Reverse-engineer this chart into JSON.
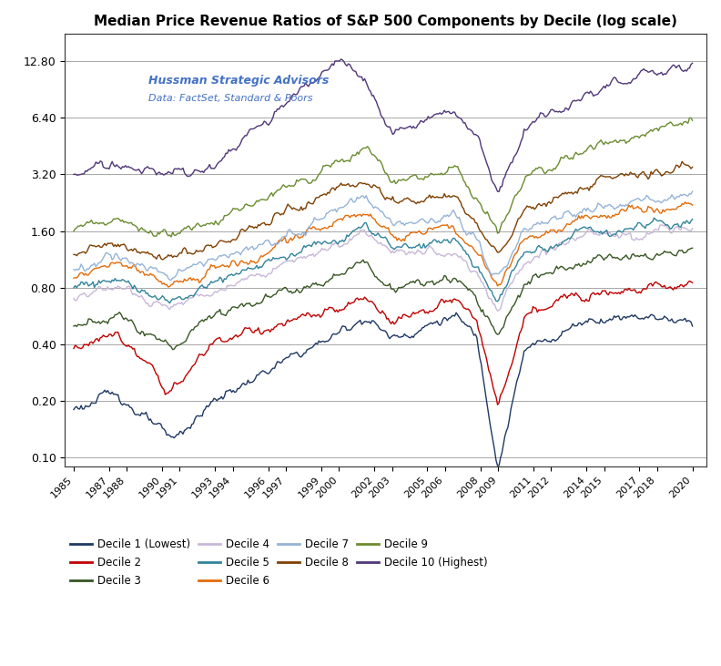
{
  "title": "Median Price Revenue Ratios of S&P 500 Components by Decile (log scale)",
  "annotation_line1": "Hussman Strategic Advisors",
  "annotation_line2": "Data: FactSet, Standard & Poors",
  "yticks": [
    0.1,
    0.2,
    0.4,
    0.8,
    1.6,
    3.2,
    6.4,
    12.8
  ],
  "ytick_labels": [
    "0.10",
    "0.20",
    "0.40",
    "0.80",
    "1.60",
    "3.20",
    "6.40",
    "12.80"
  ],
  "xtick_years": [
    1985,
    1987,
    1988,
    1990,
    1991,
    1993,
    1994,
    1996,
    1997,
    1999,
    2000,
    2002,
    2003,
    2005,
    2006,
    2008,
    2009,
    2011,
    2012,
    2014,
    2015,
    2017,
    2018,
    2020
  ],
  "deciles": [
    {
      "name": "Decile 1 (Lowest)",
      "color": "#1f3864"
    },
    {
      "name": "Decile 2",
      "color": "#c00000"
    },
    {
      "name": "Decile 3",
      "color": "#375623"
    },
    {
      "name": "Decile 4",
      "color": "#c8b8d8"
    },
    {
      "name": "Decile 5",
      "color": "#31849b"
    },
    {
      "name": "Decile 6",
      "color": "#e36c09"
    },
    {
      "name": "Decile 7",
      "color": "#95b3d7"
    },
    {
      "name": "Decile 8",
      "color": "#7f3f00"
    },
    {
      "name": "Decile 9",
      "color": "#6a8b2f"
    },
    {
      "name": "Decile 10 (Highest)",
      "color": "#4f3679"
    }
  ],
  "background_color": "#ffffff",
  "grid_color": "#999999",
  "waypoints": [
    [
      0.18,
      0.22,
      0.12,
      0.2,
      0.45,
      0.55,
      0.42,
      0.55,
      0.42,
      0.09,
      0.35,
      0.52,
      0.55,
      0.5
    ],
    [
      0.38,
      0.45,
      0.22,
      0.42,
      0.6,
      0.7,
      0.55,
      0.68,
      0.55,
      0.18,
      0.55,
      0.8,
      0.82,
      0.85
    ],
    [
      0.5,
      0.58,
      0.38,
      0.6,
      0.95,
      1.1,
      0.8,
      0.9,
      0.7,
      0.45,
      0.85,
      1.15,
      1.2,
      1.3
    ],
    [
      0.7,
      0.82,
      0.6,
      0.78,
      1.3,
      1.55,
      1.15,
      1.25,
      0.95,
      0.6,
      1.1,
      1.5,
      1.55,
      1.65
    ],
    [
      0.8,
      0.92,
      0.7,
      0.88,
      1.5,
      1.75,
      1.3,
      1.45,
      1.1,
      0.7,
      1.25,
      1.65,
      1.75,
      1.85
    ],
    [
      0.9,
      1.05,
      0.82,
      1.0,
      1.75,
      2.0,
      1.5,
      1.7,
      1.25,
      0.8,
      1.45,
      1.9,
      2.05,
      2.2
    ],
    [
      1.0,
      1.15,
      0.92,
      1.12,
      2.05,
      2.35,
      1.75,
      2.0,
      1.45,
      0.9,
      1.65,
      2.2,
      2.4,
      2.6
    ],
    [
      1.2,
      1.4,
      1.1,
      1.35,
      2.6,
      3.0,
      2.2,
      2.5,
      1.7,
      1.1,
      2.0,
      2.8,
      3.2,
      3.5
    ],
    [
      1.6,
      1.85,
      1.5,
      1.8,
      3.5,
      4.2,
      3.0,
      3.3,
      2.2,
      1.4,
      2.8,
      4.0,
      5.0,
      6.2
    ],
    [
      3.2,
      3.5,
      3.1,
      3.5,
      12.8,
      9.5,
      5.5,
      6.5,
      5.0,
      2.5,
      5.5,
      8.5,
      10.5,
      12.5
    ]
  ],
  "time_knots": [
    1985.0,
    1987.5,
    1990.5,
    1993.0,
    2000.0,
    2001.5,
    2003.0,
    2006.5,
    2007.8,
    2009.0,
    2010.5,
    2014.0,
    2017.0,
    2020.0
  ]
}
